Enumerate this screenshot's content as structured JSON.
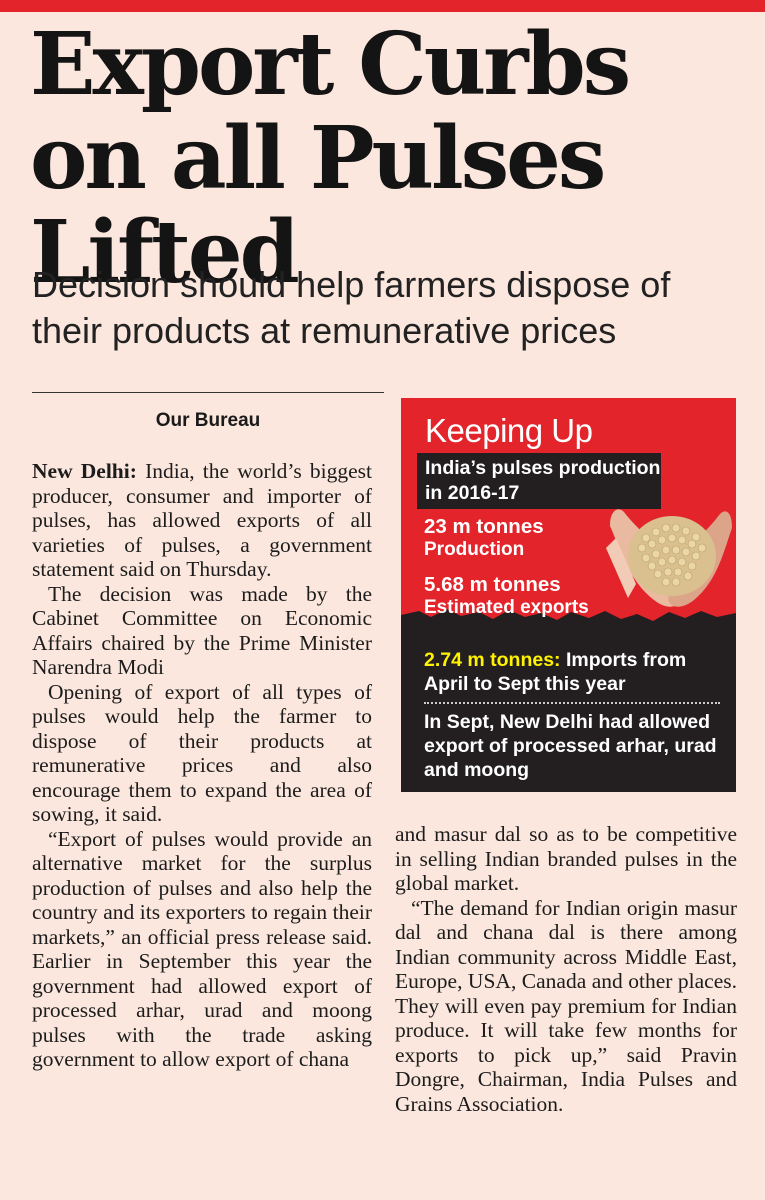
{
  "headline": "Export Curbs on all Pulses Lifted",
  "subhead": "Decision should help farmers dispose of their products at remunerative prices",
  "byline": "Our Bureau",
  "body": {
    "dateline": "New Delhi:",
    "p1": " India, the world’s biggest producer, consumer and importer of pulses, has allowed exports of all varieties of pulses, a government statement said on Thursday.",
    "p2": "The decision was made by the Cabinet Committee on Economic Affairs chaired by the Prime Minister Narendra Modi",
    "p3": "Opening of export of all types of pulses would help the farmer to dispose of their products at remunerative prices and also encourage them to expand the area of sowing, it said.",
    "p4a": "“Export of pulses would provide an alternative market for the surplus production of pulses and also help the country and its exporters to regain their markets,” an official press release said. Earlier in September this year the government had allowed export of processed arhar, urad and moong pulses with the trade asking government to allow export of chana",
    "p4b": "and masur dal so as to be competitive in selling Indian branded pulses in the global market.",
    "p5": "“The demand for Indian origin masur dal and chana dal is there among Indian community across Middle East, Europe, USA, Canada and other places. They will even pay premium for Indian produce. It will take few months for exports to pick up,” said Pravin Dongre, Chairman, India Pulses and Grains Association."
  },
  "infobox": {
    "title": "Keeping Up",
    "band": "India’s pulses production in 2016-17",
    "stat1_value": "23 m tonnes",
    "stat1_label": "Production",
    "stat2_value": "5.68 m tonnes",
    "stat2_label": "Estimated exports",
    "imports_value": "2.74 m tonnes:",
    "imports_text": " Imports from April to Sept this year",
    "sept_note": "In Sept, New Delhi had allowed export of processed arhar, urad and moong"
  },
  "colors": {
    "accent_red": "#e3242b",
    "box_dark": "#231f20",
    "highlight_yellow": "#fff200",
    "background": "#fbe7dd"
  }
}
